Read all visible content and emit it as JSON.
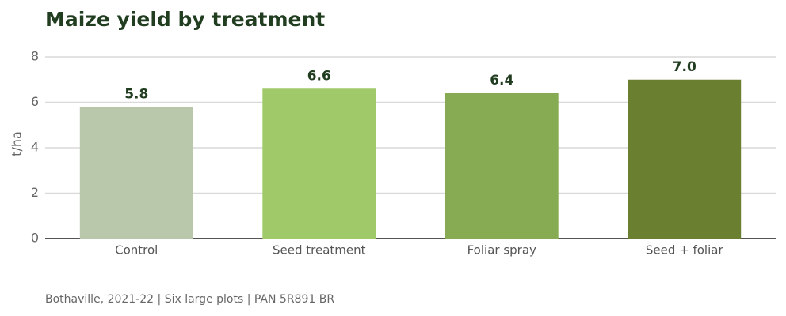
{
  "chart_data": {
    "type": "bar",
    "title": "Maize yield by treatment",
    "y_label": "t/ha",
    "caption": "Bothaville, 2021-22 | Six large plots | PAN 5R891 BR",
    "categories": [
      "Control",
      "Seed treatment",
      "Foliar spray",
      "Seed + foliar"
    ],
    "values": [
      5.8,
      6.6,
      6.4,
      7.0
    ],
    "value_labels": [
      "5.8",
      "6.6",
      "6.4",
      "7.0"
    ],
    "colors": [
      "#b9c7ab",
      "#a0c96a",
      "#86ab52",
      "#6a7f2f"
    ],
    "ylim": [
      0,
      8
    ],
    "yticks": [
      0,
      2,
      4,
      6,
      8
    ],
    "grid": true
  }
}
